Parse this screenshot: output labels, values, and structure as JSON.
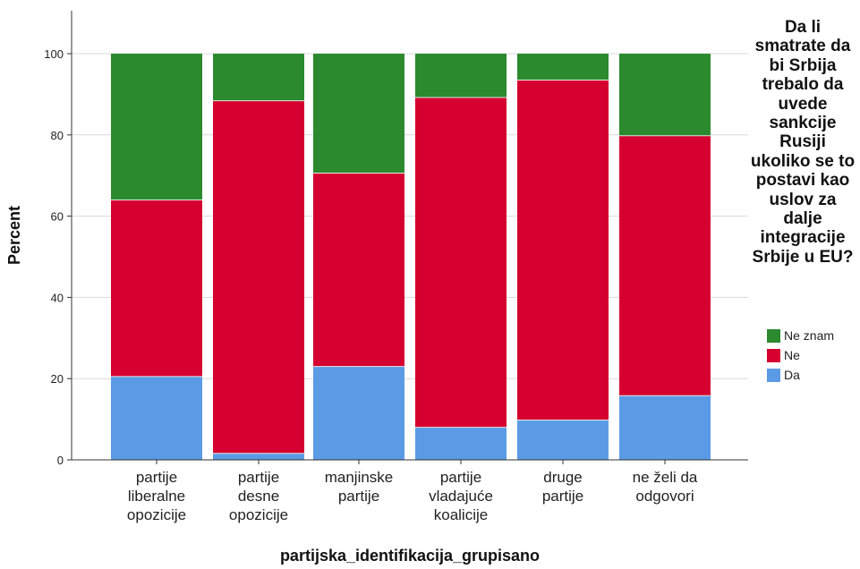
{
  "chart_data": {
    "type": "bar",
    "stacked": true,
    "xlabel": "partijska_identifikacija_grupisano",
    "ylabel": "Percent",
    "ylim": [
      0,
      100
    ],
    "yticks": [
      0,
      20,
      40,
      60,
      80,
      100
    ],
    "grid": "horizontal",
    "legend_position": "right",
    "legend_title": "Da li smatrate da bi Srbija trebalo da uvede sankcije Rusiji ukoliko se to postavi kao uslov za dalje integracije Srbije u EU?",
    "categories": [
      [
        "partije",
        "liberalne",
        "opozicije"
      ],
      [
        "partije",
        "desne",
        "opozicije"
      ],
      [
        "manjinske",
        "partije"
      ],
      [
        "partije",
        "vladajuće",
        "koalicije"
      ],
      [
        "druge",
        "partije"
      ],
      [
        "ne želi da",
        "odgovori"
      ]
    ],
    "series": [
      {
        "name": "Da",
        "color": "#5b9be6",
        "values": [
          20.5,
          1.6,
          23.0,
          8.0,
          9.8,
          15.8
        ]
      },
      {
        "name": "Ne",
        "color": "#d5002f",
        "values": [
          43.5,
          86.8,
          47.6,
          81.2,
          83.7,
          64.0
        ]
      },
      {
        "name": "Ne znam",
        "color": "#2b8a2e",
        "values": [
          36.0,
          11.6,
          29.4,
          10.8,
          6.5,
          20.2
        ]
      }
    ]
  }
}
